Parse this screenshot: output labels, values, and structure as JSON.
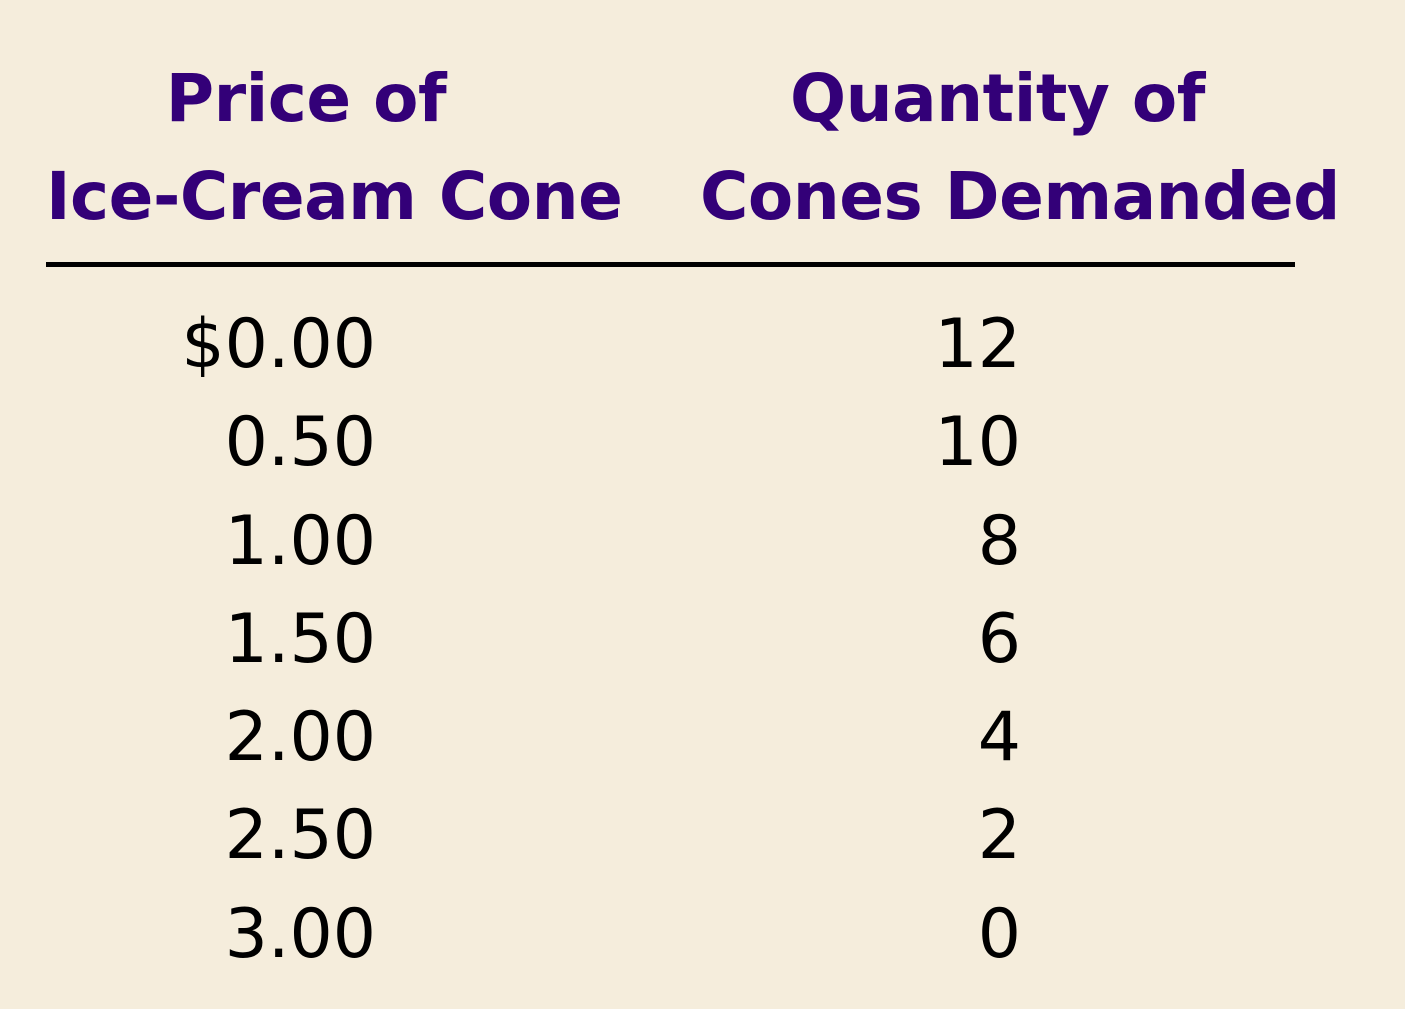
{
  "chart_data": {
    "type": "table",
    "columns": [
      {
        "lines": [
          "Price of",
          "Ice-Cream Cone"
        ]
      },
      {
        "lines": [
          "Quantity of",
          "Cones Demanded"
        ]
      }
    ],
    "rows": [
      {
        "price": "$0.00",
        "quantity": "12"
      },
      {
        "price": "0.50",
        "quantity": "10"
      },
      {
        "price": "1.00",
        "quantity": "8"
      },
      {
        "price": "1.50",
        "quantity": "6"
      },
      {
        "price": "2.00",
        "quantity": "4"
      },
      {
        "price": "2.50",
        "quantity": "2"
      },
      {
        "price": "3.00",
        "quantity": "0"
      }
    ]
  },
  "colors": {
    "background": "#f5eddc",
    "header_text": "#330078",
    "body_text": "#000000",
    "rule": "#000000"
  }
}
